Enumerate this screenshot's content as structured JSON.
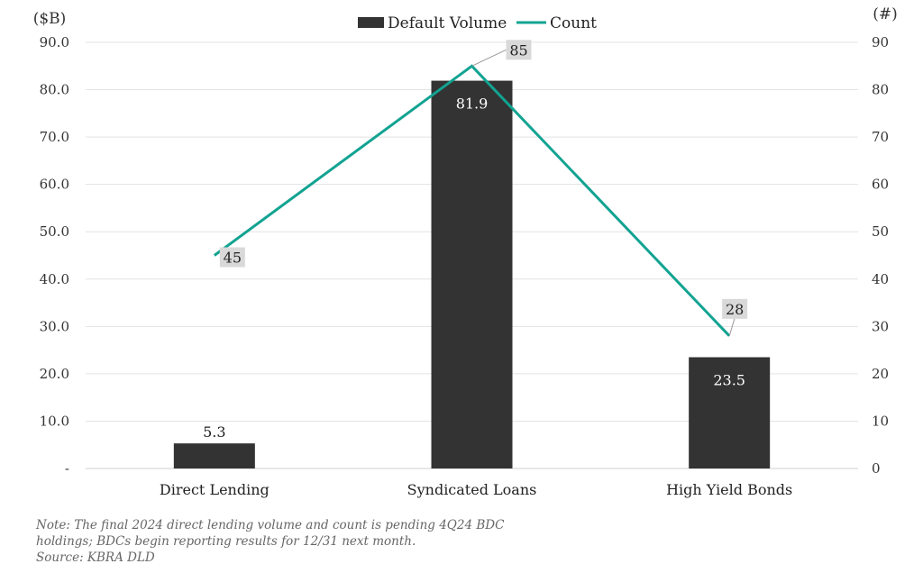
{
  "chart_data": {
    "type": "bar",
    "categories": [
      "Direct Lending",
      "Syndicated Loans",
      "High Yield Bonds"
    ],
    "series": [
      {
        "name": "Default Volume",
        "type": "bar",
        "axis": "left",
        "values": [
          5.3,
          81.9,
          23.5
        ],
        "color": "#333333"
      },
      {
        "name": "Count",
        "type": "line",
        "axis": "right",
        "values": [
          45,
          85,
          28
        ],
        "color": "#12a392"
      }
    ],
    "y_left": {
      "label": "($B)",
      "ylim": [
        0,
        90
      ],
      "ticks": [
        "-",
        "10.0",
        "20.0",
        "30.0",
        "40.0",
        "50.0",
        "60.0",
        "70.0",
        "80.0",
        "90.0"
      ]
    },
    "y_right": {
      "label": "(#)",
      "ylim": [
        0,
        90
      ],
      "ticks": [
        "0",
        "10",
        "20",
        "30",
        "40",
        "50",
        "60",
        "70",
        "80",
        "90"
      ]
    },
    "bar_labels": [
      "5.3",
      "81.9",
      "23.5"
    ],
    "line_labels": [
      "45",
      "85",
      "28"
    ],
    "grid": true,
    "legend_position": "top-center"
  },
  "notes": {
    "line1": "Note: The final 2024 direct lending volume and count is pending 4Q24 BDC",
    "line2": "holdings; BDCs begin reporting results for 12/31 next month.",
    "line3": "Source: KBRA DLD"
  }
}
